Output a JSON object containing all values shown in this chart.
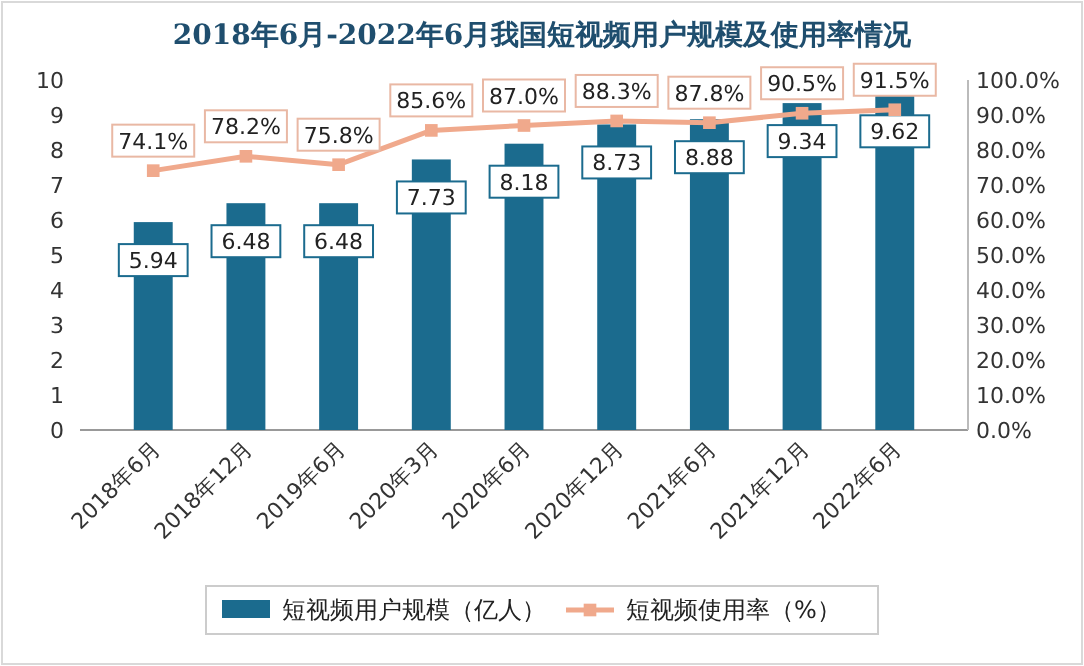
{
  "chart_data": {
    "type": "bar",
    "title": "2018年6月-2022年6月我国短视频用户规模及使用率情况",
    "categories": [
      "2018年6月",
      "2018年12月",
      "2019年6月",
      "2020年3月",
      "2020年6月",
      "2020年12月",
      "2021年6月",
      "2021年12月",
      "2022年6月"
    ],
    "series": [
      {
        "name": "短视频用户规模（亿人）",
        "color": "#1b6b8e",
        "values": [
          5.94,
          6.48,
          6.48,
          7.73,
          8.18,
          8.73,
          8.88,
          9.34,
          9.62
        ],
        "value_labels": [
          "5.94",
          "6.48",
          "6.48",
          "7.73",
          "8.18",
          "8.73",
          "8.88",
          "9.34",
          "9.62"
        ]
      },
      {
        "name": "短视频使用率（%）",
        "type": "line",
        "axis": "y2",
        "color": "#f0a98c",
        "marker": "square",
        "values": [
          74.1,
          78.2,
          75.8,
          85.6,
          87.0,
          88.3,
          87.8,
          90.5,
          91.5
        ],
        "value_labels": [
          "74.1%",
          "78.2%",
          "75.8%",
          "85.6%",
          "87.0%",
          "88.3%",
          "87.8%",
          "90.5%",
          "91.5%"
        ]
      }
    ],
    "ylim": [
      0,
      10
    ],
    "yticks": [
      0,
      1,
      2,
      3,
      4,
      5,
      6,
      7,
      8,
      9,
      10
    ],
    "y2lim": [
      0,
      100
    ],
    "y2ticks": [
      {
        "value": 0,
        "label": "0.0%"
      },
      {
        "value": 10,
        "label": "10.0%"
      },
      {
        "value": 20,
        "label": "20.0%"
      },
      {
        "value": 30,
        "label": "30.0%"
      },
      {
        "value": 40,
        "label": "40.0%"
      },
      {
        "value": 50,
        "label": "50.0%"
      },
      {
        "value": 60,
        "label": "60.0%"
      },
      {
        "value": 70,
        "label": "70.0%"
      },
      {
        "value": 80,
        "label": "80.0%"
      },
      {
        "value": 90,
        "label": "90.0%"
      },
      {
        "value": 100,
        "label": "100.0%"
      }
    ],
    "grid": false,
    "legend": "bottom"
  }
}
